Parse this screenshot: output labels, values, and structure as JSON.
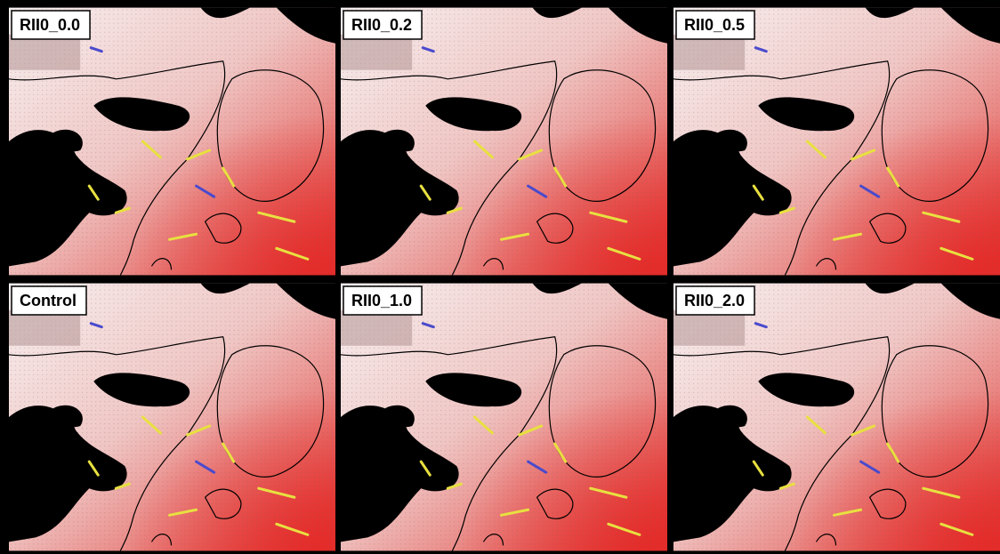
{
  "panels": [
    {
      "label": "RII0_0.0"
    },
    {
      "label": "RII0_0.2"
    },
    {
      "label": "RII0_0.5"
    },
    {
      "label": "Control"
    },
    {
      "label": "RII0_1.0"
    },
    {
      "label": "RII0_2.0"
    }
  ]
}
